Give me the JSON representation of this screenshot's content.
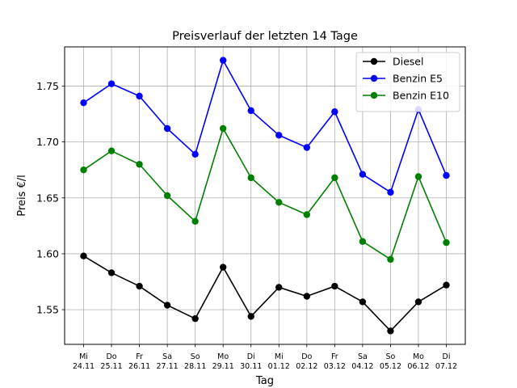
{
  "chart_data": {
    "type": "line",
    "title": "Preisverlauf der letzten 14 Tage",
    "xlabel": "Tag",
    "ylabel": "Preis €/l",
    "categories": [
      [
        "Mi",
        "24.11"
      ],
      [
        "Do",
        "25.11"
      ],
      [
        "Fr",
        "26.11"
      ],
      [
        "Sa",
        "27.11"
      ],
      [
        "So",
        "28.11"
      ],
      [
        "Mo",
        "29.11"
      ],
      [
        "Di",
        "30.11"
      ],
      [
        "Mi",
        "01.12"
      ],
      [
        "Do",
        "02.12"
      ],
      [
        "Fr",
        "03.12"
      ],
      [
        "Sa",
        "04.12"
      ],
      [
        "So",
        "05.12"
      ],
      [
        "Mo",
        "06.12"
      ],
      [
        "Di",
        "07.12"
      ]
    ],
    "ylim": [
      1.519,
      1.785
    ],
    "yticks": [
      "1.55",
      "1.60",
      "1.65",
      "1.70",
      "1.75"
    ],
    "grid": true,
    "legend_position": "top-right",
    "series": [
      {
        "name": "Diesel",
        "color": "#000000",
        "values": [
          1.598,
          1.583,
          1.571,
          1.554,
          1.542,
          1.588,
          1.544,
          1.57,
          1.562,
          1.571,
          1.557,
          1.531,
          1.557,
          1.572
        ]
      },
      {
        "name": "Benzin E5",
        "color": "#0000ff",
        "values": [
          1.735,
          1.752,
          1.741,
          1.712,
          1.689,
          1.773,
          1.728,
          1.706,
          1.695,
          1.727,
          1.671,
          1.655,
          1.729,
          1.67
        ]
      },
      {
        "name": "Benzin E10",
        "color": "#008000",
        "values": [
          1.675,
          1.692,
          1.68,
          1.652,
          1.629,
          1.712,
          1.668,
          1.646,
          1.635,
          1.668,
          1.611,
          1.595,
          1.669,
          1.61
        ]
      }
    ]
  }
}
